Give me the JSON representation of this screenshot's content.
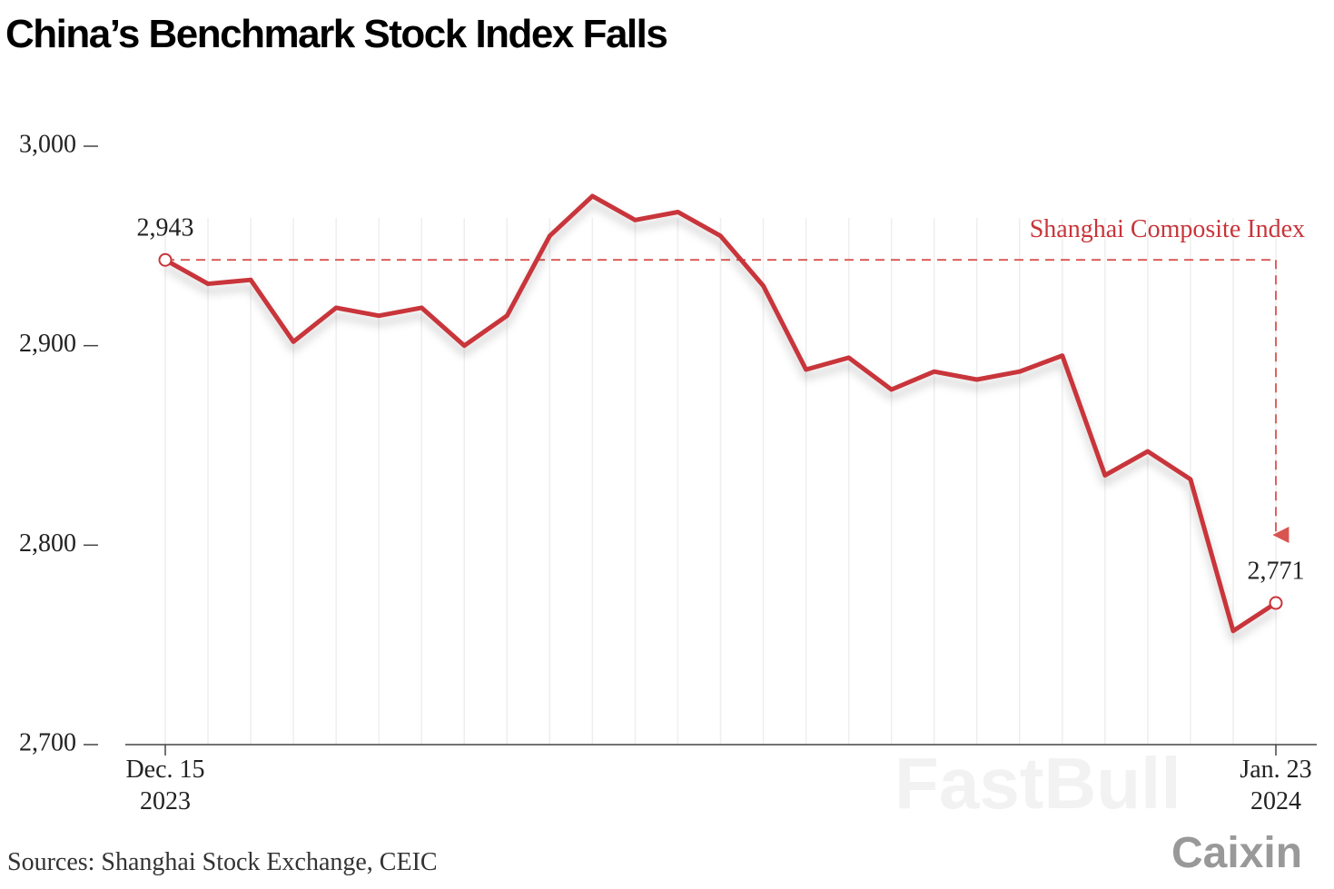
{
  "chart_data": {
    "type": "line",
    "title": "China’s Benchmark Stock Index Falls",
    "categories": [
      "Dec. 15\n2023",
      null,
      null,
      null,
      null,
      null,
      null,
      null,
      null,
      null,
      null,
      null,
      null,
      null,
      null,
      null,
      null,
      null,
      null,
      null,
      null,
      null,
      null,
      null,
      null,
      null,
      "Jan. 23\n2024"
    ],
    "series": [
      {
        "name": "Shanghai Composite Index",
        "color": "#c8353a",
        "values": [
          2943,
          2931,
          2933,
          2902,
          2919,
          2915,
          2919,
          2900,
          2915,
          2955,
          2975,
          2963,
          2967,
          2955,
          2930,
          2888,
          2894,
          2878,
          2887,
          2883,
          2887,
          2895,
          2835,
          2847,
          2833,
          2757,
          2771
        ],
        "value_labels": [
          "2,943",
          null,
          null,
          null,
          null,
          null,
          null,
          null,
          null,
          null,
          null,
          null,
          null,
          null,
          null,
          null,
          null,
          null,
          null,
          null,
          null,
          null,
          null,
          null,
          null,
          null,
          "2,771"
        ]
      }
    ],
    "ylim": [
      2700,
      3000
    ],
    "yticks": [
      {
        "value": 2700,
        "label": "2,700"
      },
      {
        "value": 2800,
        "label": "2,800"
      },
      {
        "value": 2900,
        "label": "2,900"
      },
      {
        "value": 3000,
        "label": "3,000"
      }
    ],
    "grid": true,
    "source": "Sources: Shanghai Stock Exchange, CEIC",
    "logo": "Caixin",
    "watermark": "FastBull"
  }
}
